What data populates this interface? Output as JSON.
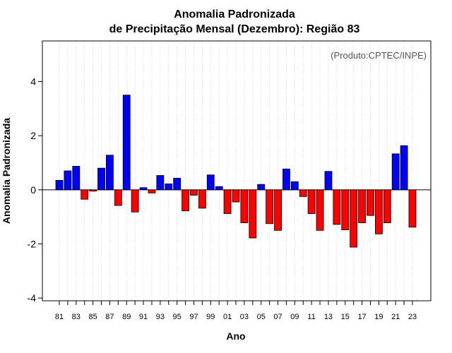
{
  "chart_data": {
    "type": "bar",
    "title_line1": "Anomalia Padronizada",
    "title_line2": "de Precipitação Mensal (Dezembro): Região 83",
    "credit": "(Produto:CPTEC/INPE)",
    "xlabel": "Ano",
    "ylabel": "Anomalia Padronizada",
    "ylim": [
      -4.1,
      5.5
    ],
    "yticks": [
      -4,
      -2,
      0,
      2,
      4
    ],
    "grid": true,
    "categories": [
      "81",
      "82",
      "83",
      "84",
      "85",
      "86",
      "87",
      "88",
      "89",
      "90",
      "91",
      "92",
      "93",
      "94",
      "95",
      "96",
      "97",
      "98",
      "99",
      "00",
      "01",
      "02",
      "03",
      "04",
      "05",
      "06",
      "07",
      "08",
      "09",
      "10",
      "11",
      "12",
      "13",
      "14",
      "15",
      "16",
      "17",
      "18",
      "19",
      "20",
      "21",
      "22",
      "23"
    ],
    "tick_labels": [
      "81",
      "83",
      "85",
      "87",
      "89",
      "91",
      "93",
      "95",
      "97",
      "99",
      "01",
      "03",
      "05",
      "07",
      "09",
      "11",
      "13",
      "15",
      "17",
      "19",
      "21",
      "23"
    ],
    "values": [
      0.35,
      0.7,
      0.87,
      -0.35,
      -0.05,
      0.8,
      1.28,
      -0.58,
      3.5,
      -0.82,
      0.08,
      -0.12,
      0.53,
      0.22,
      0.43,
      -0.78,
      -0.2,
      -0.68,
      0.55,
      0.12,
      -0.88,
      -0.45,
      -1.22,
      -1.78,
      0.2,
      -1.25,
      -1.5,
      0.77,
      0.3,
      -0.25,
      -0.88,
      -1.5,
      0.68,
      -1.28,
      -1.48,
      -2.12,
      -1.22,
      -0.95,
      -1.63,
      -1.22,
      1.33,
      1.63,
      -1.38
    ],
    "positive_color": "#0000ff",
    "negative_color": "#ff0000"
  }
}
